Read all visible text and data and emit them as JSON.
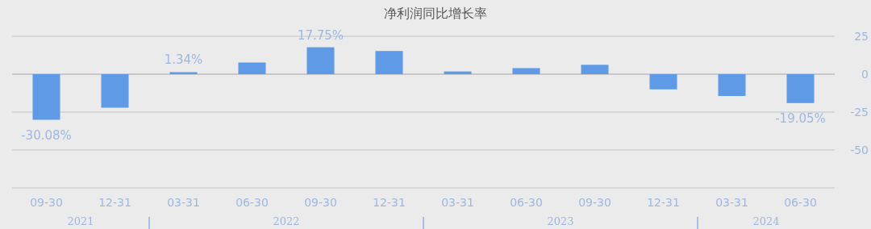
{
  "chart_data": {
    "type": "bar",
    "title": "净利润同比增长率",
    "categories": [
      "09-30",
      "12-31",
      "03-31",
      "06-30",
      "09-30",
      "12-31",
      "03-31",
      "06-30",
      "09-30",
      "12-31",
      "03-31",
      "06-30"
    ],
    "values": [
      -30.08,
      -22.1,
      1.34,
      7.7,
      17.75,
      15.3,
      1.8,
      4.0,
      6.2,
      -10.0,
      -14.4,
      -19.05
    ],
    "value_labels": [
      "-30.08%",
      null,
      "1.34%",
      null,
      "17.75%",
      null,
      null,
      null,
      null,
      null,
      null,
      "-19.05%"
    ],
    "color": "#5f9ae6",
    "ylim": [
      -75,
      25
    ],
    "yticks": [
      {
        "value": -75,
        "label": null
      },
      -50,
      -25,
      0,
      25
    ],
    "grid": "y",
    "annotations": [
      "2021",
      "2022",
      "2023",
      "2024"
    ]
  }
}
